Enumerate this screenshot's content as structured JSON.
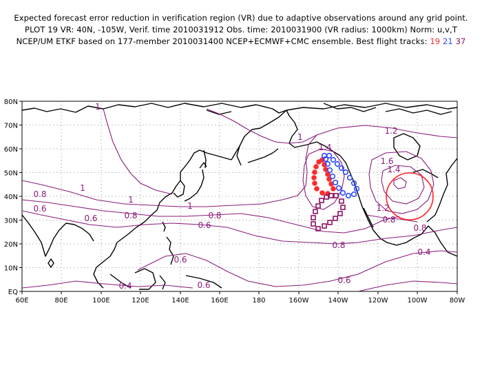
{
  "header": {
    "line1": "Expected forecast error reduction in verification region (VR) due to adaptive observations around any grid point.",
    "line2": "PLOT 19 VR: 40N, -105W, Verif. time 2010031912 Obs. time: 2010031900 (VR radius: 1000km) Norm: u,v,T",
    "line3_prefix": "NCEP/UM ETKF based on 177-member 2010031400 NCEP+ECMWF+CMC ensemble. Best flight tracks:",
    "track_a": "19",
    "track_b": "21",
    "track_c": "37"
  },
  "map": {
    "lat_labels": [
      "80N",
      "70N",
      "60N",
      "50N",
      "40N",
      "30N",
      "20N",
      "10N",
      "EQ"
    ],
    "lon_labels": [
      "60E",
      "80E",
      "100E",
      "120E",
      "140E",
      "160E",
      "180",
      "160W",
      "140W",
      "120W",
      "100W",
      "80W"
    ],
    "contour_labels": [
      "1",
      "1",
      "1",
      "1",
      "1",
      "1.2",
      "1.4",
      "1.6",
      "1.4",
      "1.2",
      "0.8",
      "0.8",
      "0.8",
      "0.8",
      "0.8",
      "0.8",
      "0.6",
      "0.6",
      "0.6",
      "0.6",
      "0.6",
      "0.6",
      "0.4",
      "0.4"
    ],
    "colors": {
      "contour": "#8a1a7a",
      "track_19": "#ff2b2b",
      "track_21": "#2b4bff",
      "track_37": "#8a1060",
      "verification_region": "#ff2020"
    }
  }
}
